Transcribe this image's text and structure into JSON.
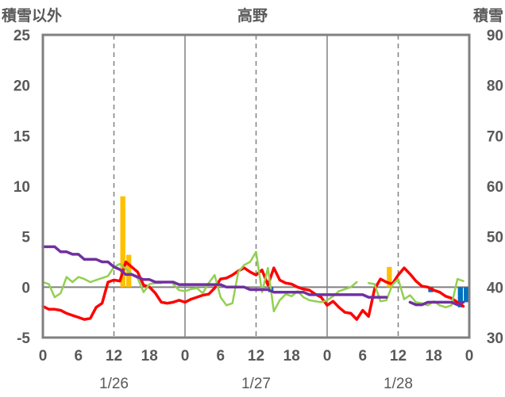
{
  "chart_data": {
    "type": "line",
    "title": "高野",
    "left_axis_title": "積雪以外",
    "right_axis_title": "積雪",
    "left_ylim": [
      -5,
      25
    ],
    "left_yticks": [
      "25",
      "20",
      "15",
      "10",
      "5",
      "0",
      "-5"
    ],
    "right_ylim": [
      30,
      90
    ],
    "right_yticks": [
      "90",
      "80",
      "70",
      "60",
      "50",
      "40",
      "30"
    ],
    "xlim": [
      0,
      72
    ],
    "xtick_labels": [
      "0",
      "6",
      "12",
      "18",
      "0",
      "6",
      "12",
      "18",
      "0",
      "6",
      "12",
      "18",
      "0"
    ],
    "date_labels": [
      "1/26",
      "1/27",
      "1/28"
    ],
    "grid": true,
    "series": [
      {
        "color": "#FF0000",
        "axis": "left",
        "points": [
          [
            0,
            -1.9
          ],
          [
            1,
            -2.2
          ],
          [
            2,
            -2.2
          ],
          [
            3,
            -2.3
          ],
          [
            4,
            -2.6
          ],
          [
            5,
            -2.8
          ],
          [
            6,
            -3.0
          ],
          [
            7,
            -3.2
          ],
          [
            8,
            -3.1
          ],
          [
            9,
            -2.0
          ],
          [
            10,
            -1.6
          ],
          [
            11,
            0.5
          ],
          [
            12,
            0.7
          ],
          [
            13,
            0.6
          ],
          [
            14,
            2.5
          ],
          [
            15,
            2.0
          ],
          [
            16,
            1.5
          ],
          [
            17,
            0.2
          ],
          [
            18,
            0.0
          ],
          [
            19,
            -0.6
          ],
          [
            20,
            -1.5
          ],
          [
            21,
            -1.6
          ],
          [
            22,
            -1.5
          ],
          [
            23,
            -1.3
          ],
          [
            24,
            -1.5
          ],
          [
            25,
            -1.2
          ],
          [
            26,
            -1.0
          ],
          [
            27,
            -0.8
          ],
          [
            28,
            -0.7
          ],
          [
            29,
            -0.1
          ],
          [
            30,
            0.8
          ],
          [
            31,
            0.9
          ],
          [
            32,
            1.2
          ],
          [
            33,
            1.6
          ],
          [
            34,
            1.9
          ],
          [
            35,
            1.5
          ],
          [
            36,
            1.2
          ],
          [
            37,
            1.7
          ],
          [
            38,
            0.2
          ],
          [
            39,
            1.9
          ],
          [
            40,
            0.7
          ],
          [
            41,
            0.4
          ],
          [
            42,
            0.3
          ],
          [
            43,
            0.0
          ],
          [
            44,
            -0.2
          ],
          [
            45,
            -0.3
          ],
          [
            46,
            -0.7
          ],
          [
            47,
            -1.0
          ],
          [
            48,
            -1.8
          ],
          [
            49,
            -1.4
          ],
          [
            50,
            -2.0
          ],
          [
            51,
            -2.5
          ],
          [
            52,
            -2.6
          ],
          [
            53,
            -3.2
          ],
          [
            54,
            -2.3
          ],
          [
            55,
            -2.9
          ],
          [
            56,
            -0.2
          ],
          [
            57,
            0.8
          ],
          [
            58,
            0.5
          ],
          [
            59,
            0.3
          ],
          [
            60,
            1.2
          ],
          [
            61,
            1.9
          ],
          [
            62,
            1.3
          ],
          [
            63,
            0.6
          ],
          [
            64,
            0.1
          ],
          [
            65,
            0.0
          ],
          [
            66,
            -0.3
          ],
          [
            67,
            -0.5
          ],
          [
            68,
            -0.9
          ],
          [
            69,
            -1.1
          ],
          [
            70,
            -1.5
          ],
          [
            71,
            -1.9
          ]
        ]
      },
      {
        "color": "#92D050",
        "axis": "left",
        "points": [
          [
            0,
            0.5
          ],
          [
            1,
            0.3
          ],
          [
            2,
            -1.0
          ],
          [
            3,
            -0.6
          ],
          [
            4,
            1.0
          ],
          [
            5,
            0.5
          ],
          [
            6,
            1.0
          ],
          [
            7,
            0.8
          ],
          [
            8,
            0.5
          ],
          [
            9,
            0.7
          ],
          [
            10,
            0.9
          ],
          [
            11,
            1.1
          ],
          [
            12,
            2.0
          ],
          [
            13,
            2.3
          ],
          [
            14,
            1.8
          ],
          [
            15,
            1.3
          ],
          [
            16,
            0.9
          ],
          [
            17,
            -0.5
          ],
          [
            18,
            0.3
          ],
          [
            19,
            0.4
          ],
          [
            20,
            0.4
          ],
          [
            21,
            null
          ],
          [
            22,
            0.3
          ],
          [
            23,
            -0.3
          ],
          [
            24,
            -0.4
          ],
          [
            25,
            -0.2
          ],
          [
            26,
            -0.1
          ],
          [
            27,
            -0.6
          ],
          [
            28,
            0.4
          ],
          [
            29,
            1.2
          ],
          [
            30,
            -1.0
          ],
          [
            31,
            -1.8
          ],
          [
            32,
            -1.6
          ],
          [
            33,
            1.5
          ],
          [
            34,
            2.2
          ],
          [
            35,
            2.5
          ],
          [
            36,
            3.5
          ],
          [
            37,
            -0.5
          ],
          [
            38,
            1.9
          ],
          [
            39,
            -2.4
          ],
          [
            40,
            -1.3
          ],
          [
            41,
            -0.7
          ],
          [
            42,
            -0.9
          ],
          [
            43,
            -0.4
          ],
          [
            44,
            -1.0
          ],
          [
            45,
            -1.3
          ],
          [
            46,
            -1.4
          ],
          [
            47,
            -1.5
          ],
          [
            48,
            -1.3
          ],
          [
            49,
            -0.9
          ],
          [
            50,
            -0.4
          ],
          [
            51,
            -0.2
          ],
          [
            52,
            0.0
          ],
          [
            53,
            0.5
          ],
          [
            54,
            null
          ],
          [
            55,
            0.4
          ],
          [
            56,
            0.3
          ],
          [
            57,
            -1.4
          ],
          [
            58,
            -1.3
          ],
          [
            59,
            0.2
          ],
          [
            60,
            0.8
          ],
          [
            61,
            -1.2
          ],
          [
            62,
            -0.8
          ],
          [
            63,
            -1.5
          ],
          [
            64,
            -1.6
          ],
          [
            65,
            -1.8
          ],
          [
            66,
            -1.4
          ],
          [
            67,
            -1.8
          ],
          [
            68,
            -2.0
          ],
          [
            69,
            -1.8
          ],
          [
            70,
            0.8
          ],
          [
            71,
            0.6
          ]
        ]
      },
      {
        "color": "#7030A0",
        "axis": "right",
        "points": [
          [
            0,
            48
          ],
          [
            1,
            48
          ],
          [
            2,
            48
          ],
          [
            3,
            47
          ],
          [
            4,
            47
          ],
          [
            5,
            46.5
          ],
          [
            6,
            46.5
          ],
          [
            7,
            45.5
          ],
          [
            8,
            45.5
          ],
          [
            9,
            45.5
          ],
          [
            10,
            45
          ],
          [
            11,
            45
          ],
          [
            12,
            44
          ],
          [
            13,
            43.5
          ],
          [
            14,
            42.5
          ],
          [
            15,
            42.5
          ],
          [
            16,
            42
          ],
          [
            17,
            41.5
          ],
          [
            18,
            41.5
          ],
          [
            19,
            41
          ],
          [
            20,
            41
          ],
          [
            21,
            41
          ],
          [
            22,
            41
          ],
          [
            23,
            40.5
          ],
          [
            24,
            40.5
          ],
          [
            25,
            40.5
          ],
          [
            26,
            40.5
          ],
          [
            27,
            40.5
          ],
          [
            28,
            40.5
          ],
          [
            29,
            40.5
          ],
          [
            30,
            40.5
          ],
          [
            31,
            40
          ],
          [
            32,
            40
          ],
          [
            33,
            40
          ],
          [
            34,
            40
          ],
          [
            35,
            39.5
          ],
          [
            36,
            39.5
          ],
          [
            37,
            39.5
          ],
          [
            38,
            39.5
          ],
          [
            39,
            39
          ],
          [
            40,
            39
          ],
          [
            41,
            39
          ],
          [
            42,
            39
          ],
          [
            43,
            39
          ],
          [
            44,
            39
          ],
          [
            45,
            38.5
          ],
          [
            46,
            38.5
          ],
          [
            47,
            38.5
          ],
          [
            48,
            38.5
          ],
          [
            49,
            38.5
          ],
          [
            50,
            38.5
          ],
          [
            51,
            38.5
          ],
          [
            52,
            38.5
          ],
          [
            53,
            38.5
          ],
          [
            54,
            38.5
          ],
          [
            55,
            38
          ],
          [
            56,
            38
          ],
          [
            57,
            38
          ],
          [
            58,
            38
          ],
          [
            59,
            null
          ],
          [
            60,
            null
          ],
          [
            61,
            null
          ],
          [
            62,
            37
          ],
          [
            63,
            36.5
          ],
          [
            64,
            36.5
          ],
          [
            65,
            37
          ],
          [
            66,
            37
          ],
          [
            67,
            37
          ],
          [
            68,
            37
          ],
          [
            69,
            37
          ],
          [
            70,
            36.5
          ],
          [
            71,
            37
          ]
        ]
      }
    ],
    "bars": [
      {
        "color": "#FFC000",
        "x": 13,
        "value": 9.0
      },
      {
        "color": "#FFC000",
        "x": 14,
        "value": 3.2
      },
      {
        "color": "#FFC000",
        "x": 58,
        "value": 2.0
      },
      {
        "color": "#0070C0",
        "x": 38,
        "value": -0.5
      },
      {
        "color": "#0070C0",
        "x": 65,
        "value": -0.5
      },
      {
        "color": "#0070C0",
        "x": 70,
        "value": -2.0
      },
      {
        "color": "#0070C0",
        "x": 71,
        "value": -1.5
      }
    ]
  }
}
